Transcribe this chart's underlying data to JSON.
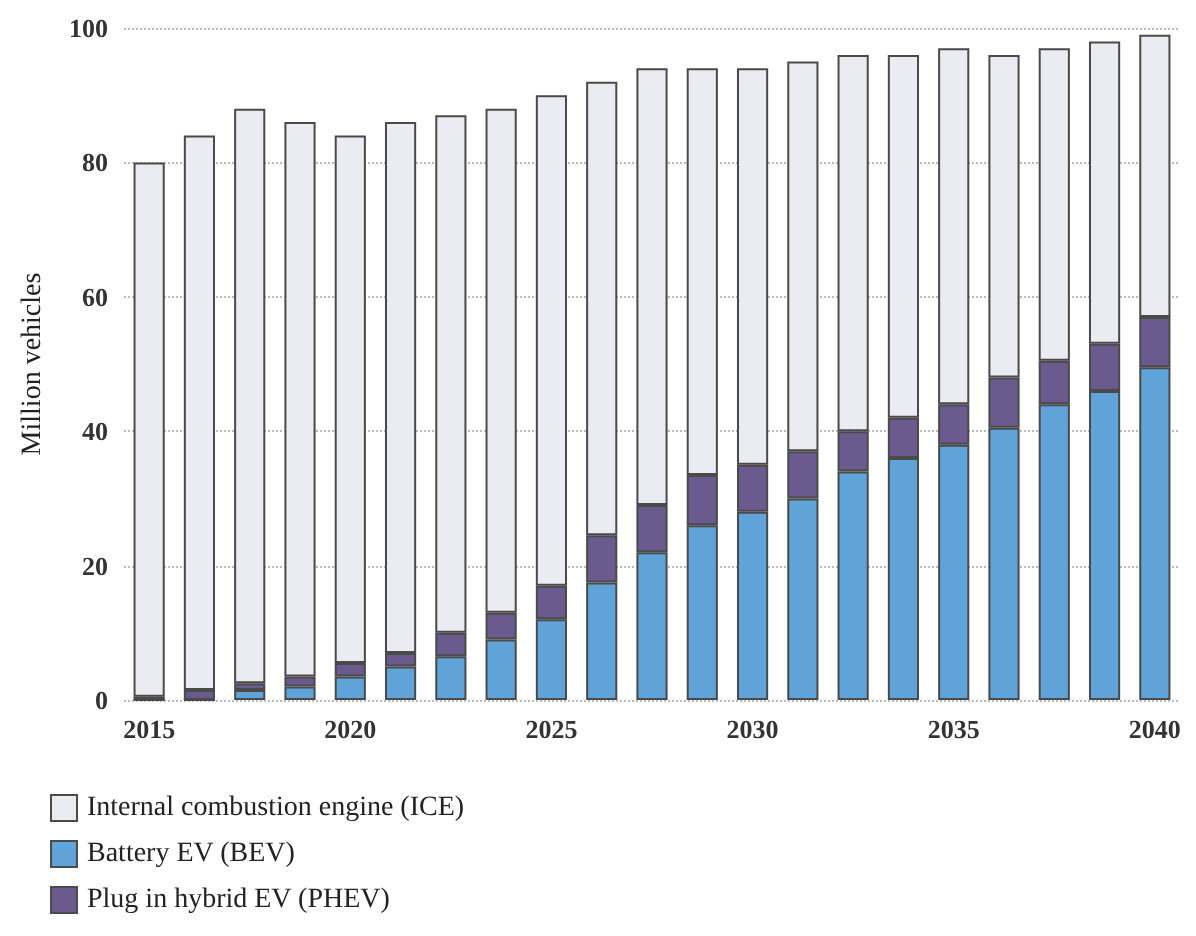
{
  "chart_data": {
    "type": "bar",
    "stacked": true,
    "ylabel": "Million vehicles",
    "categories": [
      "2015",
      null,
      null,
      null,
      "2020",
      null,
      null,
      null,
      "2025",
      null,
      null,
      null,
      "2030",
      null,
      null,
      null,
      "2035",
      null,
      null,
      null,
      "2040"
    ],
    "series": [
      {
        "name": "Battery EV (BEV)",
        "color": "#5fa3d8",
        "values": [
          0,
          0,
          1.5,
          2,
          3.5,
          5,
          6.5,
          9,
          12,
          17.5,
          22,
          26,
          28,
          30,
          34,
          36,
          38,
          40.5,
          44,
          46,
          49.5
        ]
      },
      {
        "name": "Plug in hybrid EV (PHEV)",
        "color": "#6a5a8e",
        "values": [
          0.5,
          1.5,
          1,
          1.5,
          2,
          2,
          3.5,
          4,
          5,
          7,
          7,
          7.5,
          7,
          7,
          6,
          6,
          6,
          7.5,
          6.5,
          7,
          7.5
        ]
      },
      {
        "name": "Internal combustion engine (ICE)",
        "color": "#ebebf2",
        "values": [
          79.5,
          82.5,
          85.5,
          82.5,
          78.5,
          79,
          77,
          75,
          73,
          67.5,
          65,
          60.5,
          59,
          58,
          56,
          54,
          53,
          48,
          46.5,
          45,
          42
        ]
      }
    ],
    "ylim": [
      0,
      100
    ],
    "yticks": [
      0,
      20,
      40,
      60,
      80,
      100
    ],
    "grid": "y",
    "legend": "bottom left"
  }
}
